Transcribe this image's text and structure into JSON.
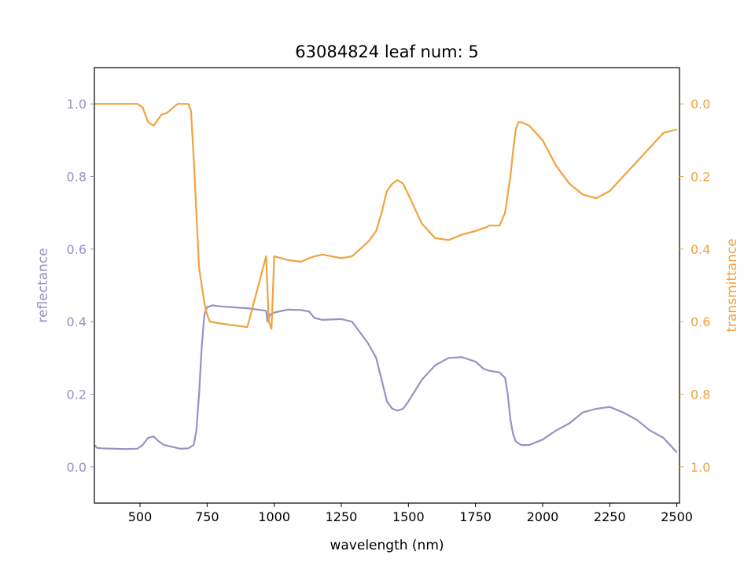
{
  "chart_data": {
    "type": "line",
    "title": "63084824 leaf num: 5",
    "xlabel": "wavelength (nm)",
    "ylabel": "reflectance",
    "y2label": "transmittance",
    "xlim": [
      330,
      2510
    ],
    "ylim": [
      -0.1,
      1.1
    ],
    "y2lim": [
      1.1,
      -0.1
    ],
    "y2_inverted": true,
    "x_ticks": [
      500,
      750,
      1000,
      1250,
      1500,
      1750,
      2000,
      2250,
      2500
    ],
    "y_ticks": [
      0.0,
      0.2,
      0.4,
      0.6,
      0.8,
      1.0
    ],
    "y2_ticks": [
      0.0,
      0.2,
      0.4,
      0.6,
      0.8,
      1.0
    ],
    "grid": false,
    "colors": {
      "reflectance": "#9692c4",
      "transmittance": "#f0a33f",
      "axis": "#000000"
    },
    "series": [
      {
        "name": "reflectance",
        "axis": "left",
        "x": [
          330,
          340,
          360,
          400,
          450,
          490,
          510,
          530,
          550,
          570,
          590,
          620,
          650,
          680,
          700,
          710,
          720,
          730,
          740,
          750,
          770,
          800,
          900,
          970,
          975,
          985,
          1000,
          1050,
          1100,
          1130,
          1150,
          1180,
          1250,
          1290,
          1320,
          1350,
          1380,
          1400,
          1420,
          1440,
          1460,
          1480,
          1500,
          1550,
          1600,
          1650,
          1700,
          1750,
          1780,
          1800,
          1840,
          1860,
          1870,
          1880,
          1890,
          1900,
          1910,
          1920,
          1950,
          2000,
          2050,
          2100,
          2150,
          2200,
          2250,
          2300,
          2350,
          2400,
          2450,
          2500
        ],
        "values": [
          0.06,
          0.052,
          0.051,
          0.05,
          0.049,
          0.05,
          0.06,
          0.08,
          0.084,
          0.07,
          0.06,
          0.055,
          0.05,
          0.051,
          0.06,
          0.1,
          0.2,
          0.33,
          0.42,
          0.44,
          0.445,
          0.442,
          0.437,
          0.43,
          0.4,
          0.42,
          0.425,
          0.433,
          0.432,
          0.428,
          0.41,
          0.405,
          0.407,
          0.4,
          0.37,
          0.34,
          0.3,
          0.24,
          0.18,
          0.16,
          0.155,
          0.16,
          0.18,
          0.24,
          0.28,
          0.3,
          0.302,
          0.29,
          0.27,
          0.265,
          0.26,
          0.245,
          0.2,
          0.13,
          0.09,
          0.07,
          0.065,
          0.06,
          0.06,
          0.075,
          0.1,
          0.12,
          0.15,
          0.16,
          0.165,
          0.15,
          0.13,
          0.1,
          0.08,
          0.04
        ]
      },
      {
        "name": "transmittance",
        "axis": "right",
        "x": [
          330,
          350,
          400,
          450,
          490,
          510,
          530,
          550,
          560,
          580,
          600,
          640,
          660,
          680,
          690,
          700,
          710,
          720,
          730,
          740,
          750,
          760,
          800,
          900,
          970,
          980,
          990,
          1000,
          1050,
          1100,
          1130,
          1150,
          1180,
          1250,
          1290,
          1320,
          1350,
          1380,
          1400,
          1420,
          1440,
          1460,
          1480,
          1500,
          1550,
          1600,
          1650,
          1700,
          1750,
          1790,
          1800,
          1840,
          1860,
          1870,
          1880,
          1890,
          1900,
          1910,
          1920,
          1950,
          2000,
          2050,
          2100,
          2150,
          2200,
          2250,
          2300,
          2350,
          2400,
          2450,
          2500
        ],
        "values": [
          0.0,
          0.0,
          0.0,
          0.0,
          0.0,
          0.01,
          0.05,
          0.06,
          0.05,
          0.03,
          0.025,
          0.0,
          0.0,
          0.0,
          0.02,
          0.15,
          0.3,
          0.45,
          0.5,
          0.55,
          0.58,
          0.6,
          0.605,
          0.615,
          0.42,
          0.6,
          0.62,
          0.42,
          0.43,
          0.435,
          0.425,
          0.42,
          0.415,
          0.425,
          0.42,
          0.4,
          0.38,
          0.35,
          0.3,
          0.24,
          0.22,
          0.21,
          0.22,
          0.25,
          0.33,
          0.37,
          0.375,
          0.36,
          0.35,
          0.34,
          0.335,
          0.335,
          0.3,
          0.25,
          0.2,
          0.13,
          0.07,
          0.05,
          0.05,
          0.06,
          0.1,
          0.17,
          0.22,
          0.25,
          0.26,
          0.24,
          0.2,
          0.16,
          0.12,
          0.08,
          0.07
        ]
      }
    ]
  }
}
